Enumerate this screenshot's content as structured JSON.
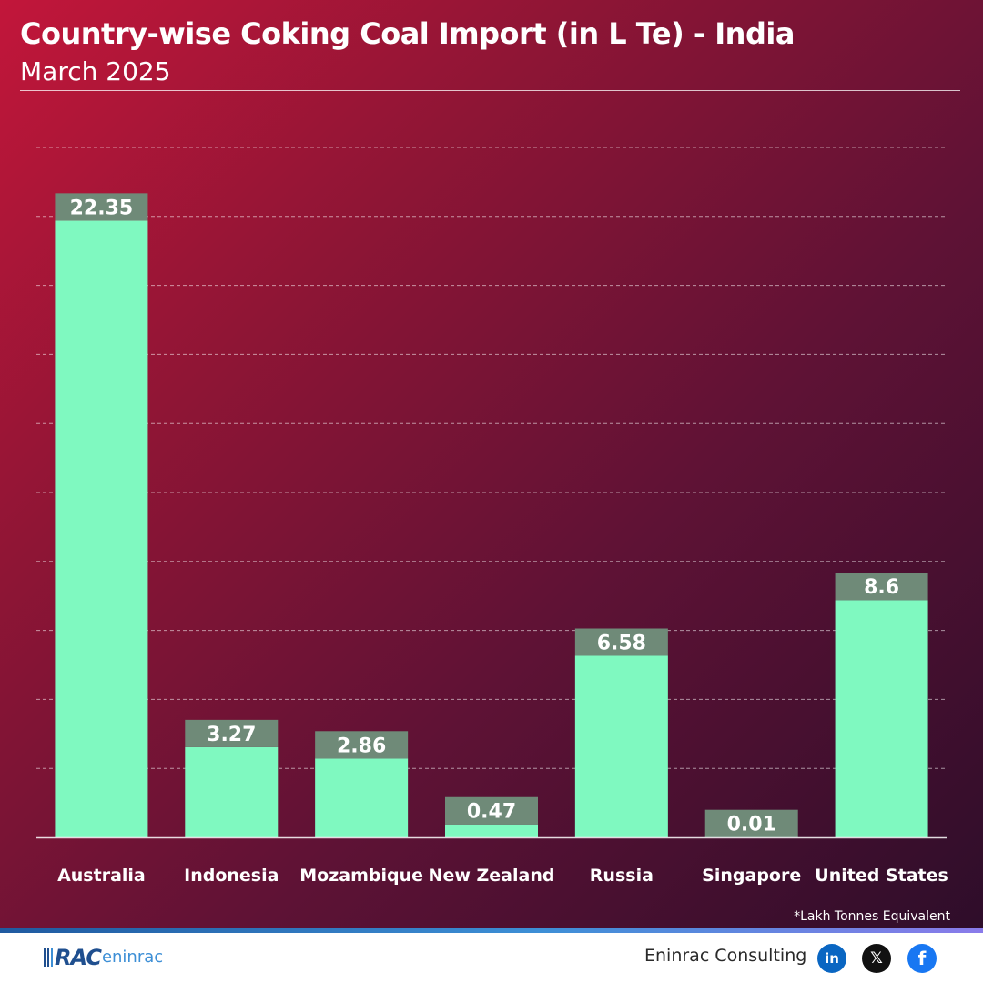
{
  "header": {
    "title": "Country-wise Coking Coal Import (in L Te) - India",
    "subtitle": "March 2025"
  },
  "chart_data": {
    "type": "bar",
    "categories": [
      "Australia",
      "Indonesia",
      "Mozambique",
      "New Zealand",
      "Russia",
      "Singapore",
      "United States"
    ],
    "values": [
      22.35,
      3.27,
      2.86,
      0.47,
      6.58,
      0.01,
      8.6
    ],
    "data_labels": [
      "22.35",
      "3.27",
      "2.86",
      "0.47",
      "6.58",
      "0.01",
      "8.6"
    ],
    "ylim": [
      0,
      25
    ],
    "grid": true,
    "legend": "none",
    "colors": {
      "bar": "#7ff9c0",
      "label_box": "#6f8a78"
    }
  },
  "footnote": "*Lakh Tonnes Equivalent",
  "footer": {
    "logo_text": "RAC",
    "logo_sub": "eninrac",
    "company": "Eninrac Consulting",
    "social": [
      {
        "name": "linkedin-icon",
        "glyph": "in"
      },
      {
        "name": "x-icon",
        "glyph": "𝕏"
      },
      {
        "name": "facebook-icon",
        "glyph": "f"
      }
    ]
  }
}
